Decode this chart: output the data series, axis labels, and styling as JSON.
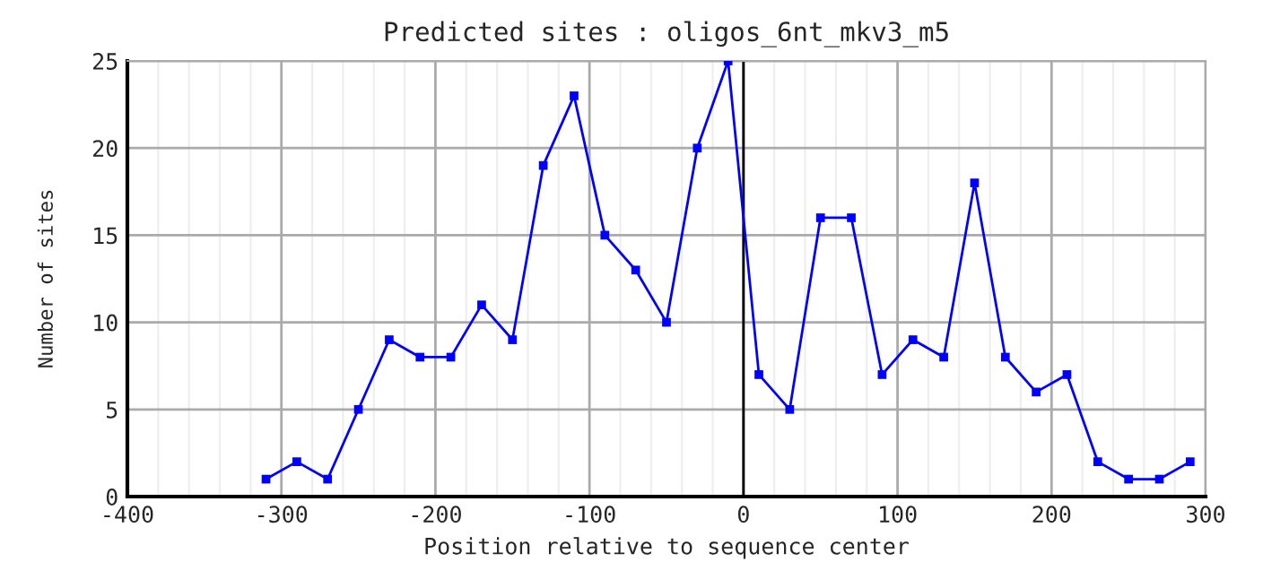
{
  "chart_data": {
    "type": "line",
    "title": "Predicted sites : oligos_6nt_mkv3_m5",
    "xlabel": "Position relative to sequence center",
    "ylabel": "Number of sites",
    "x": [
      -310,
      -290,
      -270,
      -250,
      -230,
      -210,
      -190,
      -170,
      -150,
      -130,
      -110,
      -90,
      -70,
      -50,
      -30,
      -10,
      10,
      30,
      50,
      70,
      90,
      110,
      130,
      150,
      170,
      190,
      210,
      230,
      250,
      270,
      290
    ],
    "series": [
      {
        "color": "#0000ff",
        "values": [
          1,
          2,
          1,
          5,
          9,
          8,
          8,
          11,
          9,
          19,
          23,
          15,
          13,
          10,
          20,
          25,
          7,
          5,
          16,
          16,
          7,
          9,
          8,
          18,
          8,
          6,
          7,
          2,
          1,
          1,
          2
        ]
      }
    ],
    "xlim": [
      -400,
      300
    ],
    "xticks": [
      -400,
      -300,
      -200,
      -100,
      0,
      100,
      200,
      300
    ],
    "ylim": [
      0,
      25
    ],
    "yticks": [
      0,
      5,
      10,
      15,
      20,
      25
    ],
    "ref_lines": [
      {
        "axis": "x",
        "value": 0,
        "color": "#000000"
      }
    ],
    "grid": true,
    "marker": "square",
    "line_style": "solid",
    "legend": false
  }
}
